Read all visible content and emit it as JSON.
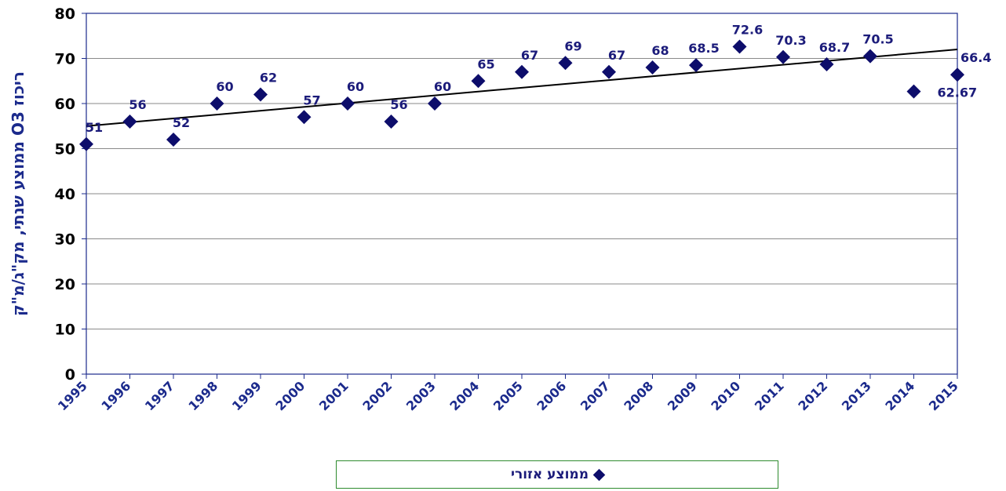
{
  "chart_data": {
    "type": "scatter",
    "title": "",
    "xlabel": "",
    "ylabel": "ריכוז O3 ממוצע שנתי, מק\"ג/מ\"ק",
    "ylim": [
      0,
      80
    ],
    "yticks": [
      0,
      10,
      20,
      30,
      40,
      50,
      60,
      70,
      80
    ],
    "grid": true,
    "legend_position": "bottom",
    "marker_color": "#0d0d6b",
    "axis_color": "#1b2a8c",
    "trendline": {
      "type": "linear",
      "from": [
        1995,
        55
      ],
      "to": [
        2015,
        72
      ]
    },
    "series": [
      {
        "name": "ממוצע אזורי",
        "x": [
          1995,
          1996,
          1997,
          1998,
          1999,
          2000,
          2001,
          2002,
          2003,
          2004,
          2005,
          2006,
          2007,
          2008,
          2009,
          2010,
          2011,
          2012,
          2013,
          2014,
          2015
        ],
        "y": [
          51,
          56,
          52,
          60,
          62,
          57,
          60,
          56,
          60,
          65,
          67,
          69,
          67,
          68,
          68.5,
          72.6,
          70.3,
          68.7,
          70.5,
          62.67,
          66.4
        ],
        "labels": [
          "51",
          "56",
          "52",
          "60",
          "62",
          "57",
          "60",
          "56",
          "60",
          "65",
          "67",
          "69",
          "67",
          "68",
          "68.5",
          "72.6",
          "70.3",
          "68.7",
          "70.5",
          "62.67",
          "66.4"
        ]
      }
    ]
  }
}
